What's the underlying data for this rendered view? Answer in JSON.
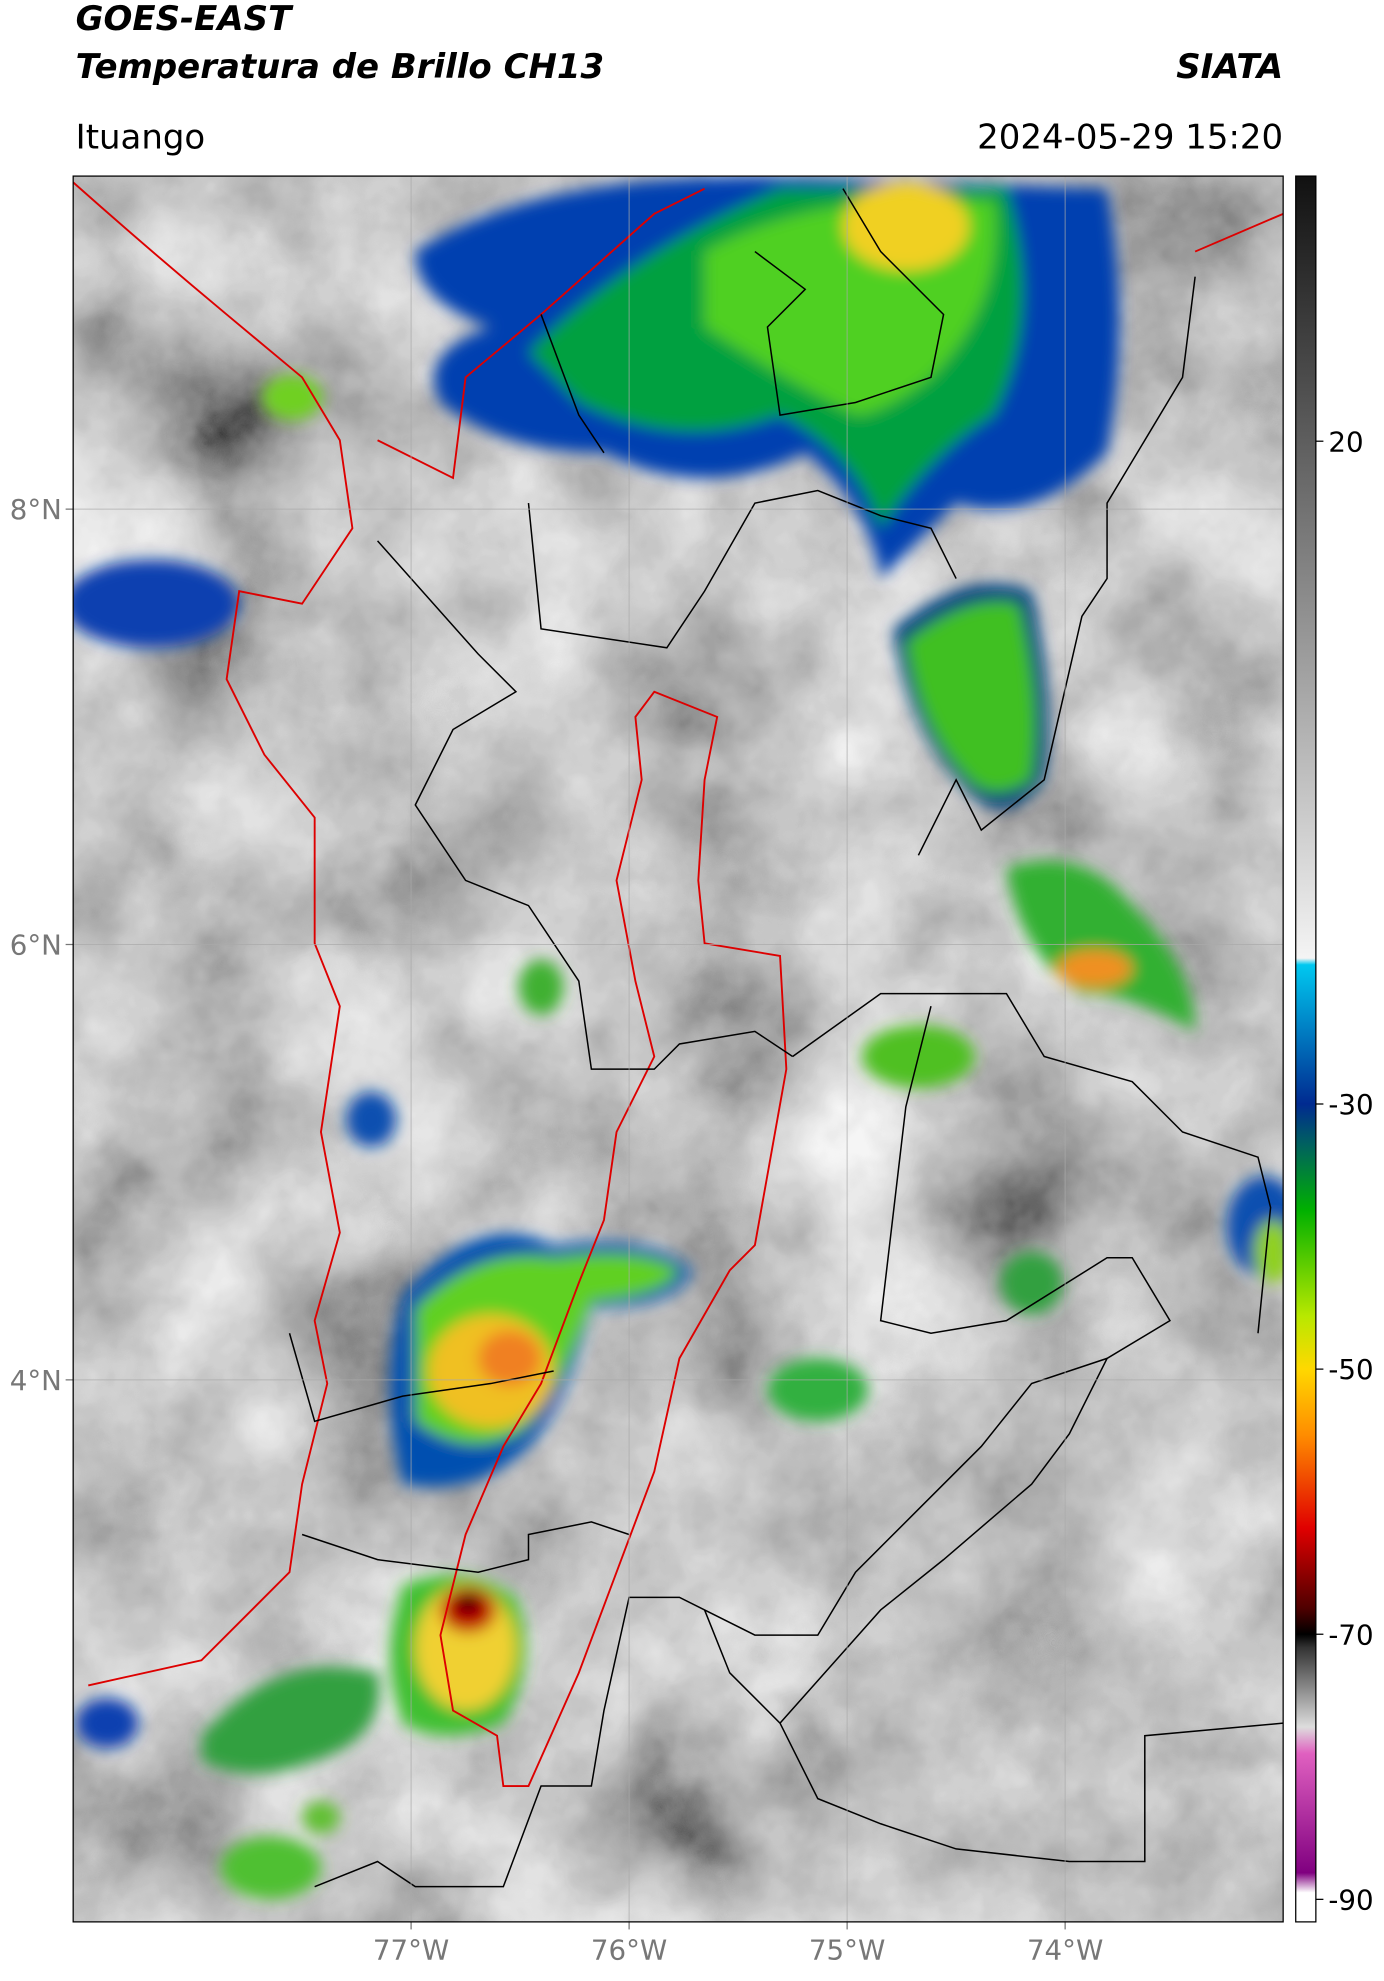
{
  "header": {
    "title": "GOES-EAST",
    "subtitle": "Temperatura de Brillo CH13",
    "brand": "SIATA",
    "place": "Ituango",
    "datetime": "2024-05-29 15:20"
  },
  "chart_data": {
    "type": "map",
    "xlim": [
      -78.55,
      -73.0
    ],
    "ylim": [
      1.51,
      9.53
    ],
    "grid": true,
    "xticks": [
      {
        "value": -77,
        "label": "77°W"
      },
      {
        "value": -76,
        "label": "76°W"
      },
      {
        "value": -75,
        "label": "75°W"
      },
      {
        "value": -74,
        "label": "74°W"
      }
    ],
    "yticks": [
      {
        "value": 8,
        "label": "8°N"
      },
      {
        "value": 6,
        "label": "6°N"
      },
      {
        "value": 4,
        "label": "4°N"
      }
    ],
    "colorbar": {
      "clim": [
        -91.7,
        40
      ],
      "ticks": [
        20,
        -30,
        -50,
        -70,
        -90
      ],
      "colormap": [
        {
          "value": 40,
          "color": "#111111"
        },
        {
          "value": -19,
          "color": "#f4f4f4"
        },
        {
          "value": -19.5,
          "color": "#00c8f0"
        },
        {
          "value": -30,
          "color": "#002a90"
        },
        {
          "value": -33,
          "color": "#006060"
        },
        {
          "value": -38,
          "color": "#00b000"
        },
        {
          "value": -46,
          "color": "#b8e800"
        },
        {
          "value": -50,
          "color": "#ffd800"
        },
        {
          "value": -55,
          "color": "#ff8c00"
        },
        {
          "value": -62,
          "color": "#e00000"
        },
        {
          "value": -68,
          "color": "#500000"
        },
        {
          "value": -70,
          "color": "#000000"
        },
        {
          "value": -71,
          "color": "#333333"
        },
        {
          "value": -77,
          "color": "#dddddd"
        },
        {
          "value": -79,
          "color": "#e060c0"
        },
        {
          "value": -88,
          "color": "#800080"
        },
        {
          "value": -89.5,
          "color": "#ffffff"
        },
        {
          "value": -91.7,
          "color": "#ffffff"
        }
      ]
    }
  }
}
